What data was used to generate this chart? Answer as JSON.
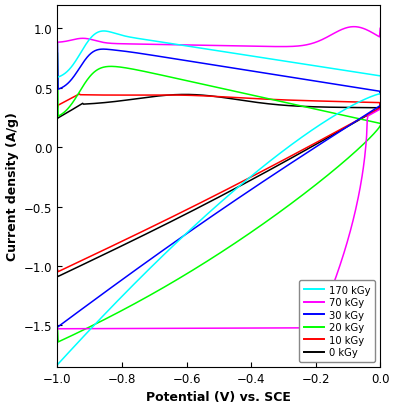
{
  "title": "",
  "xlabel": "Potential (V) vs. SCE",
  "ylabel": "Current density (A/g)",
  "xlim": [
    -1.0,
    0.0
  ],
  "ylim": [
    -1.85,
    1.2
  ],
  "yticks": [
    -1.5,
    -1.0,
    -0.5,
    0.0,
    0.5,
    1.0
  ],
  "xticks": [
    -1.0,
    -0.8,
    -0.6,
    -0.4,
    -0.2,
    0.0
  ],
  "legend_labels": [
    "170 kGy",
    "70 kGy",
    "30 kGy",
    "20 kGy",
    "10 kGy",
    "0 kGy"
  ],
  "colors": [
    "cyan",
    "magenta",
    "blue",
    "lime",
    "red",
    "black"
  ],
  "background": "#ffffff"
}
